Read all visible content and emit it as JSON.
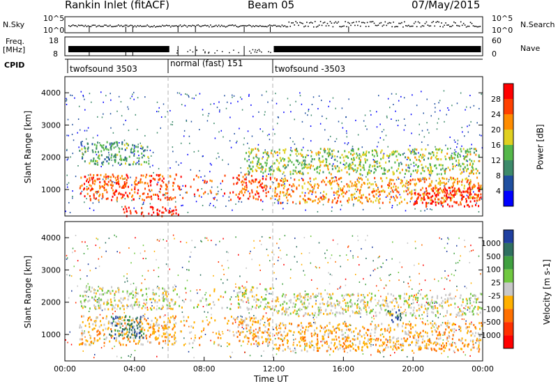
{
  "header": {
    "station": "Rankin Inlet (fitACF)",
    "beam": "Beam 05",
    "date": "07/May/2015"
  },
  "top_panels": {
    "nsky_label": "N.Sky",
    "nsky_ticks": [
      "10^5",
      "10^0"
    ],
    "nsearch_label": "N.Search",
    "nsearch_ticks": [
      "10^5",
      "10^0"
    ],
    "freq_label": "Freq.",
    "freq_unit": "[MHz]",
    "freq_ticks": [
      "18",
      "8"
    ],
    "nave_label": "Nave",
    "nave_ticks": [
      "60",
      "0"
    ],
    "cpid_label": "CPID",
    "cpid_segments": [
      "twofsound 3503",
      "normal (fast) 151",
      "twofsound -3503"
    ]
  },
  "chart_data": [
    {
      "type": "heatmap",
      "title": "",
      "xlabel": "",
      "ylabel": "Slant Range [km]",
      "xlim": [
        "00:00",
        "24:00"
      ],
      "ylim": [
        180,
        4500
      ],
      "y_ticks": [
        "1000",
        "2000",
        "3000",
        "4000"
      ],
      "grid": false,
      "colorbar": {
        "label": "Power [dB]",
        "ticks": [
          "4",
          "8",
          "12",
          "16",
          "20",
          "24",
          "28"
        ],
        "colors": [
          "#0000ff",
          "#1f4fa0",
          "#3d8a6a",
          "#55b84a",
          "#e0d020",
          "#ff8c00",
          "#ff4000",
          "#ff0000"
        ]
      },
      "features": [
        {
          "t_start": 0.8,
          "t_end": 11.8,
          "range_km": [
            700,
            1500
          ],
          "power_db": 24
        },
        {
          "t_start": 3.3,
          "t_end": 7.0,
          "range_km": [
            200,
            500
          ],
          "power_db": 28
        },
        {
          "t_start": 0.8,
          "t_end": 4.8,
          "range_km": [
            1800,
            2500
          ],
          "power_db": 10
        },
        {
          "t_start": 10.3,
          "t_end": 23.9,
          "range_km": [
            1500,
            2300
          ],
          "power_db": 14
        },
        {
          "t_start": 12.0,
          "t_end": 23.9,
          "range_km": [
            600,
            1400
          ],
          "power_db": 20
        },
        {
          "t_start": 20.0,
          "t_end": 23.9,
          "range_km": [
            500,
            1100
          ],
          "power_db": 28
        }
      ]
    },
    {
      "type": "heatmap",
      "title": "",
      "xlabel": "Time UT",
      "ylabel": "Slant Range [km]",
      "xlim": [
        "00:00",
        "24:00"
      ],
      "ylim": [
        180,
        4500
      ],
      "x_ticks": [
        "00:00",
        "04:00",
        "08:00",
        "12:00",
        "16:00",
        "20:00",
        "00:00"
      ],
      "y_ticks": [
        "1000",
        "2000",
        "3000",
        "4000"
      ],
      "grid": false,
      "colorbar": {
        "label": "Velocity [m s-1]",
        "ticks": [
          "1000",
          "500",
          "100",
          "25",
          "-25",
          "-100",
          "-500",
          "-1000"
        ],
        "colors": [
          "#1f3fa0",
          "#2f7060",
          "#40a040",
          "#70c840",
          "#c8c8c8",
          "#ffb000",
          "#ff7000",
          "#ff3000",
          "#ff0000"
        ]
      },
      "features": [
        {
          "t_start": 0.8,
          "t_end": 11.8,
          "range_km": [
            700,
            1600
          ],
          "velocity_ms": -100
        },
        {
          "t_start": 0.8,
          "t_end": 11.8,
          "range_km": [
            1800,
            2500
          ],
          "velocity_ms": 0
        },
        {
          "t_start": 2.5,
          "t_end": 4.5,
          "range_km": [
            900,
            1600
          ],
          "velocity_ms": 500
        },
        {
          "t_start": 12.0,
          "t_end": 23.9,
          "range_km": [
            1600,
            2300
          ],
          "velocity_ms": 0
        },
        {
          "t_start": 12.0,
          "t_end": 23.9,
          "range_km": [
            500,
            1400
          ],
          "velocity_ms": -100
        },
        {
          "t_start": 18.5,
          "t_end": 19.3,
          "range_km": [
            1400,
            1800
          ],
          "velocity_ms": 1000
        }
      ]
    }
  ],
  "colors": {
    "nsky_trace": "#000000",
    "nsearch_trace": "#000000",
    "cpid_line": "#000000",
    "mode_divider": "#b0b0b0"
  }
}
